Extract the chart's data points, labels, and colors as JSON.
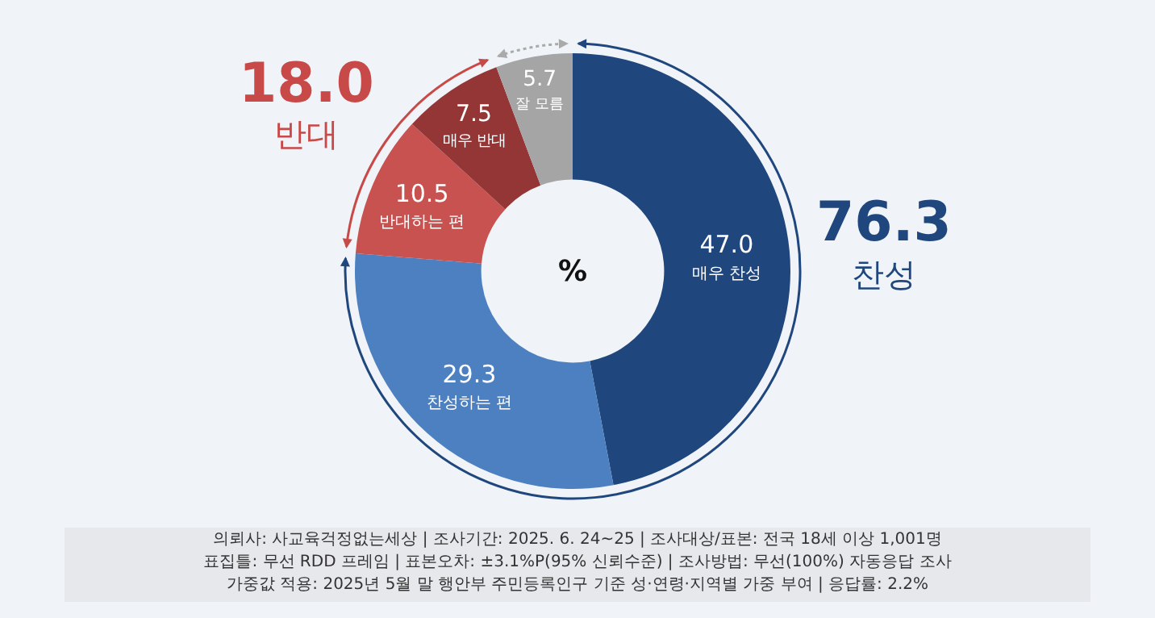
{
  "chart_data": {
    "type": "donut",
    "categories": [
      "매우 찬성",
      "찬성하는 편",
      "반대하는 편",
      "매우 반대",
      "잘 모름"
    ],
    "values": [
      47.0,
      29.3,
      10.5,
      7.5,
      5.7
    ],
    "value_labels": [
      "47.0",
      "29.3",
      "10.5",
      "7.5",
      "5.7"
    ],
    "colors": [
      "#1f477d",
      "#4c80c0",
      "#c85250",
      "#943636",
      "#a5a5a5"
    ],
    "legend": false,
    "annotations": [
      "18.0",
      "반대",
      "76.3",
      "찬성",
      "%",
      "의뢰사: 사교육걱정없는세상 | 조사기간: 2025. 6. 24~25 | 조사대상/표본: 전국 18세 이상 1,001명",
      "표집틀: 무선 RDD 프레임 | 표본오차: ±3.1%P(95% 신뢰수준) | 조사방법: 무선(100%) 자동응답 조사",
      "가중값 적용: 2025년 5월 말 행안부 주민등록인구 기준 성·연령·지역별 가중 부여 | 응답률: 2.2%"
    ]
  }
}
